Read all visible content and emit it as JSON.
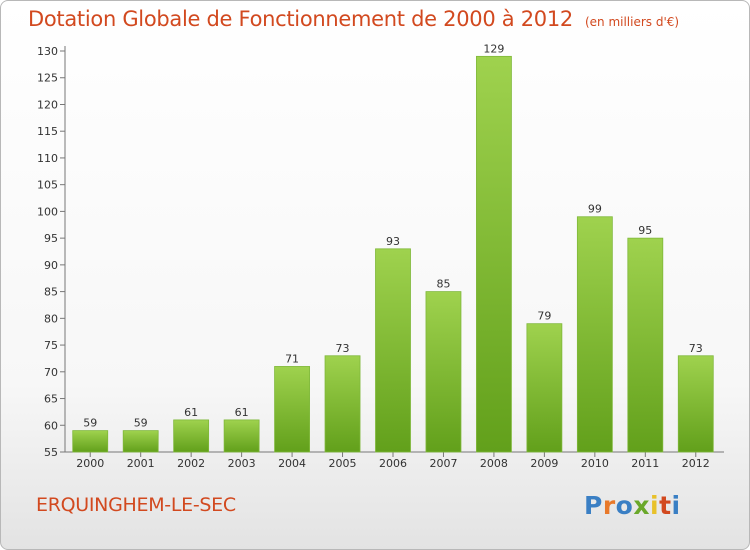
{
  "title": "Dotation Globale de Fonctionnement de 2000 à 2012",
  "subtitle": "(en milliers d'€)",
  "city": "ERQUINGHEM-LE-SEC",
  "logo": {
    "text": "Proxiti",
    "colors": [
      "#3a7fc4",
      "#e8792a",
      "#3a7fc4",
      "#6aa82a",
      "#e8c12a",
      "#d2491f",
      "#3a7fc4"
    ]
  },
  "colors": {
    "title": "#d2491f",
    "bar_light": "#9fd24e",
    "bar_dark": "#62a01b",
    "axis": "#777777"
  },
  "chart_data": {
    "type": "bar",
    "categories": [
      "2000",
      "2001",
      "2002",
      "2003",
      "2004",
      "2005",
      "2006",
      "2007",
      "2008",
      "2009",
      "2010",
      "2011",
      "2012"
    ],
    "values": [
      59,
      59,
      61,
      61,
      71,
      73,
      93,
      85,
      129,
      79,
      99,
      95,
      73
    ],
    "ylim": [
      55,
      130
    ],
    "yticks": [
      55,
      60,
      65,
      70,
      75,
      80,
      85,
      90,
      95,
      100,
      105,
      110,
      115,
      120,
      125,
      130
    ],
    "grid": false,
    "xlabel": "",
    "ylabel": ""
  }
}
